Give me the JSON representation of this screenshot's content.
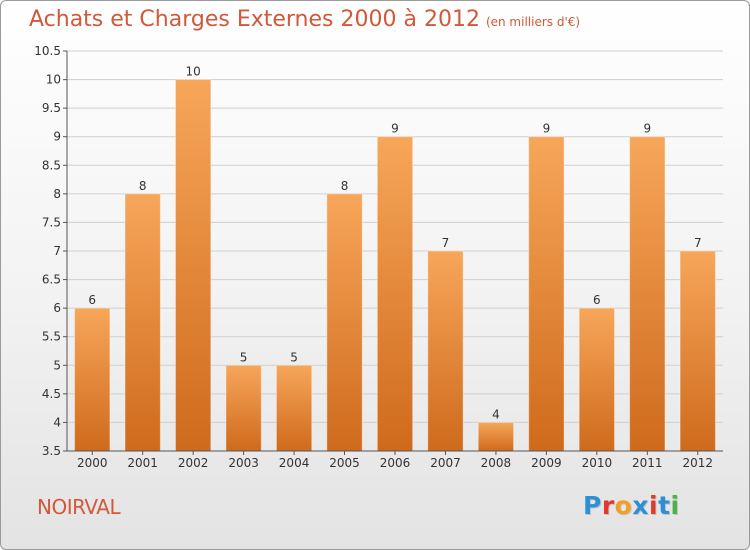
{
  "title": "Achats et Charges Externes 2000 à 2012",
  "unit_note": "(en milliers d'€)",
  "location": "NOIRVAL",
  "logo": {
    "text": "Proxiti",
    "letter_colors": [
      "#2e8fd6",
      "#e03a2e",
      "#f2a025",
      "#2e8fd6",
      "#e03a2e",
      "#2e8fd6",
      "#49b24a"
    ]
  },
  "colors": {
    "bar_light": "#f7a65a",
    "bar_dark": "#cf6a1c",
    "text": "#d2583a"
  },
  "chart_data": {
    "type": "bar",
    "title": "Achats et Charges Externes 2000 à 2012",
    "categories": [
      "2000",
      "2001",
      "2002",
      "2003",
      "2004",
      "2005",
      "2006",
      "2007",
      "2008",
      "2009",
      "2010",
      "2011",
      "2012"
    ],
    "values": [
      6,
      8,
      10,
      5,
      5,
      8,
      9,
      7,
      4,
      9,
      6,
      9,
      7
    ],
    "data_labels": [
      "6",
      "8",
      "10",
      "5",
      "5",
      "8",
      "9",
      "7",
      "4",
      "9",
      "6",
      "9",
      "7"
    ],
    "ylim": [
      3.5,
      10.5
    ],
    "yticks": [
      3.5,
      4,
      4.5,
      5,
      5.5,
      6,
      6.5,
      7,
      7.5,
      8,
      8.5,
      9,
      9.5,
      10,
      10.5
    ],
    "ytick_labels": [
      "3.5",
      "4",
      "4.5",
      "5",
      "5.5",
      "6",
      "6.5",
      "7",
      "7.5",
      "8",
      "8.5",
      "9",
      "9.5",
      "10",
      "10.5"
    ],
    "grid": true,
    "xlabel": "",
    "ylabel": ""
  }
}
